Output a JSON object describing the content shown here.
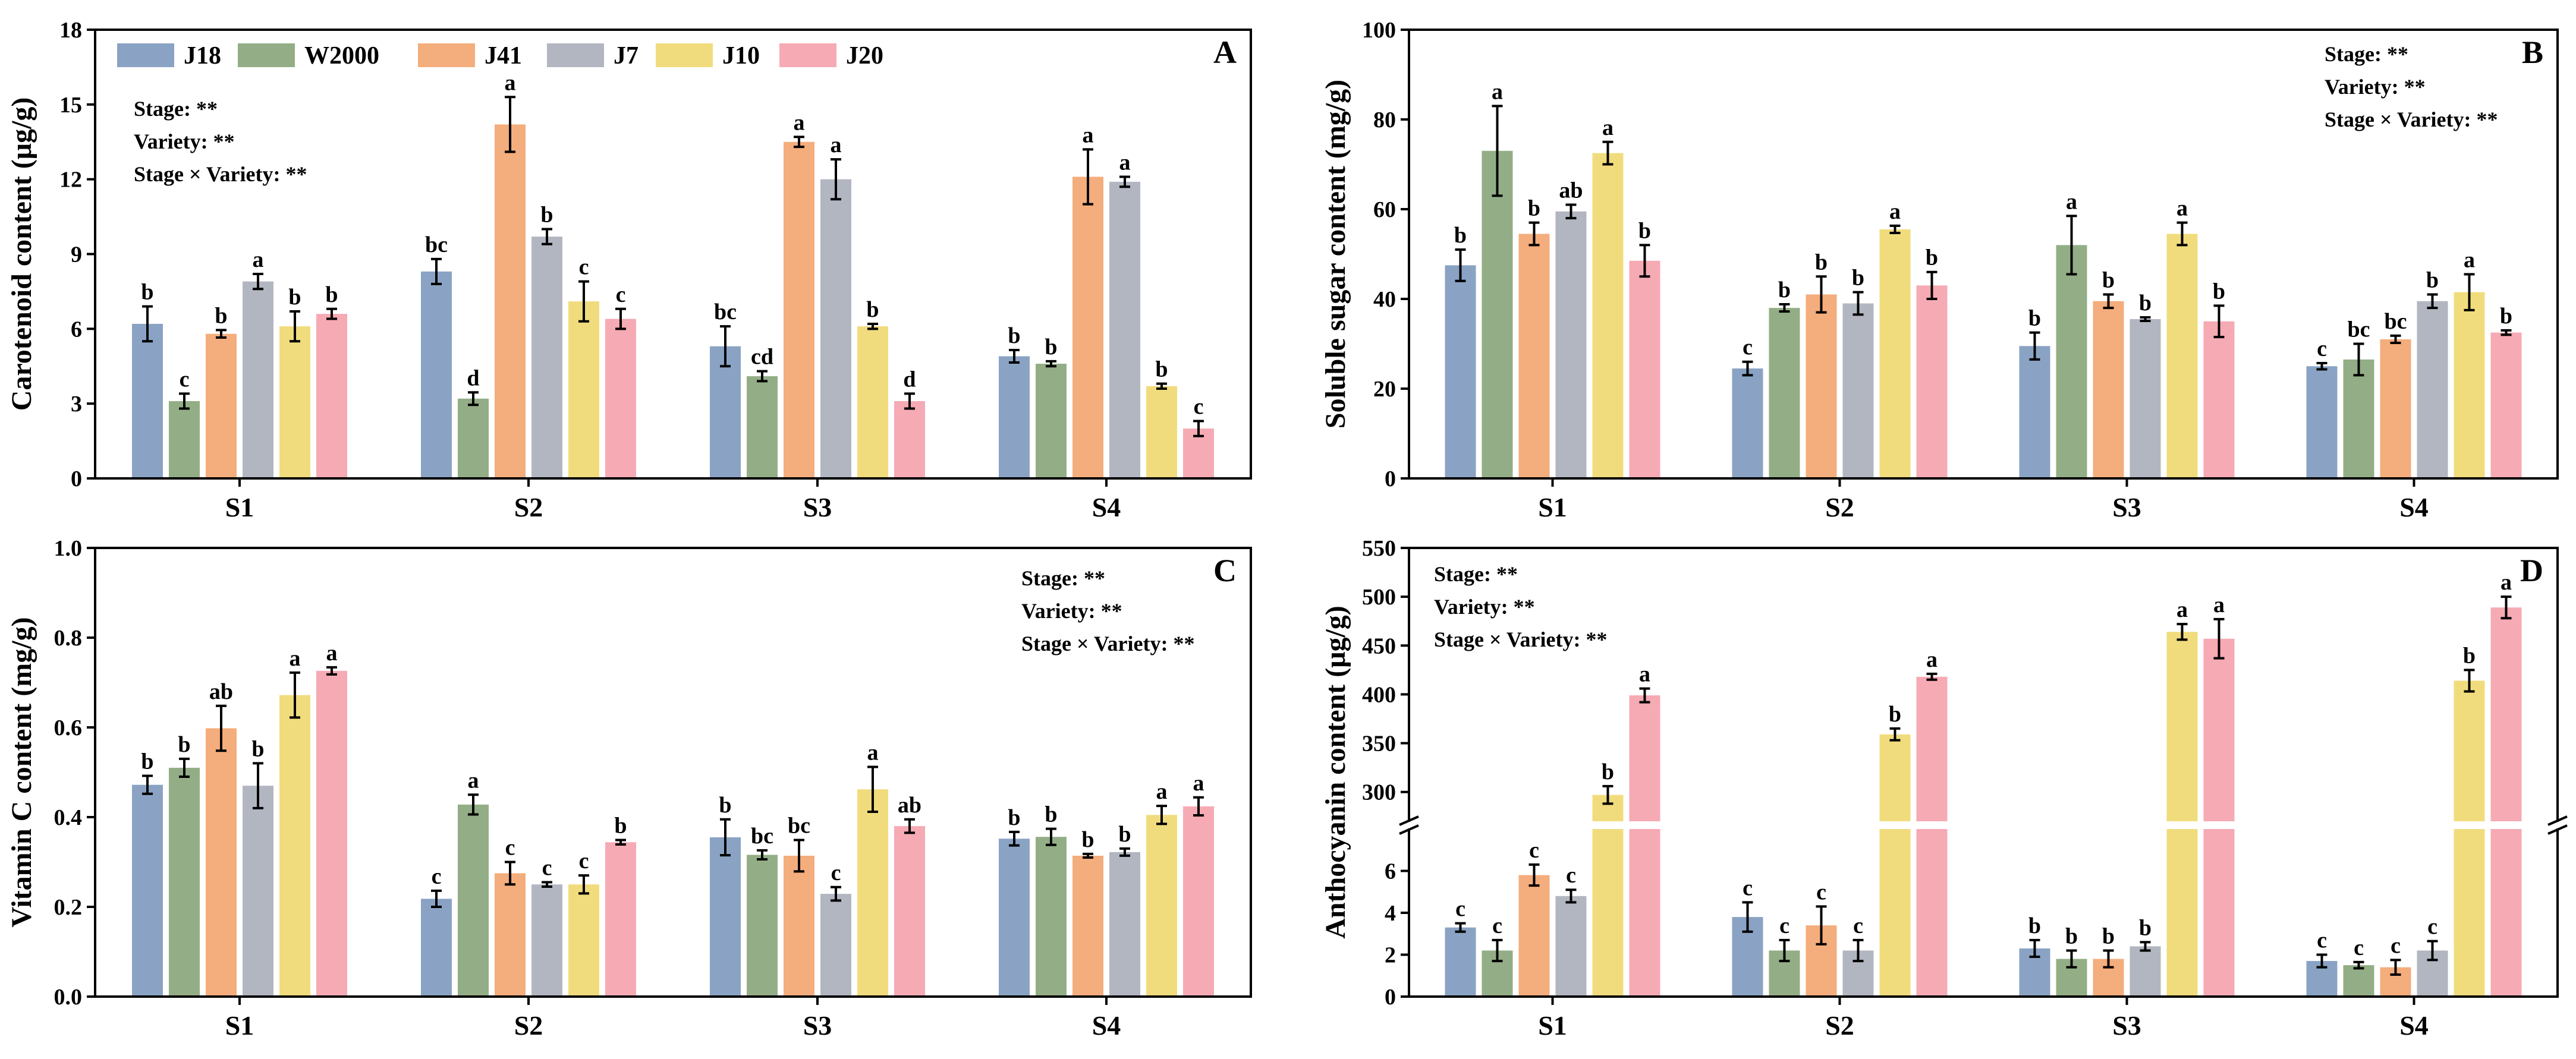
{
  "colors": {
    "J18": "#8aa3c4",
    "W2000": "#93ae86",
    "J41": "#f4ad7c",
    "J7": "#b2b6c1",
    "J10": "#f1dc7d",
    "J20": "#f6aab4"
  },
  "legend": [
    "J18",
    "W2000",
    "J41",
    "J7",
    "J10",
    "J20"
  ],
  "chart_data": [
    {
      "panel": "A",
      "type": "bar",
      "categories": [
        "S1",
        "S2",
        "S3",
        "S4"
      ],
      "ylabel": "Carotenoid content (μg/g)",
      "ylim": [
        0,
        18
      ],
      "yticks": [
        0,
        3,
        6,
        9,
        12,
        15,
        18
      ],
      "ytick_labels": [
        "0",
        "3",
        "6",
        "9",
        "12",
        "15",
        "18"
      ],
      "stats": [
        "Stage: **",
        "Variety: **",
        "Stage × Variety: **"
      ],
      "series": [
        {
          "name": "J18",
          "values": [
            6.2,
            8.3,
            5.3,
            4.9
          ],
          "errors": [
            0.7,
            0.5,
            0.8,
            0.25
          ],
          "letters": [
            "b",
            "bc",
            "bc",
            "b"
          ]
        },
        {
          "name": "W2000",
          "values": [
            3.1,
            3.2,
            4.1,
            4.6
          ],
          "errors": [
            0.3,
            0.25,
            0.2,
            0.1
          ],
          "letters": [
            "c",
            "d",
            "cd",
            "b"
          ]
        },
        {
          "name": "J41",
          "values": [
            5.8,
            14.2,
            13.5,
            12.1
          ],
          "errors": [
            0.15,
            1.1,
            0.2,
            1.1
          ],
          "letters": [
            "b",
            "a",
            "a",
            "a"
          ]
        },
        {
          "name": "J7",
          "values": [
            7.9,
            9.7,
            12.0,
            11.9
          ],
          "errors": [
            0.3,
            0.3,
            0.8,
            0.2
          ],
          "letters": [
            "a",
            "b",
            "a",
            "a"
          ]
        },
        {
          "name": "J10",
          "values": [
            6.1,
            7.1,
            6.1,
            3.7
          ],
          "errors": [
            0.6,
            0.8,
            0.1,
            0.1
          ],
          "letters": [
            "b",
            "c",
            "b",
            "b"
          ]
        },
        {
          "name": "J20",
          "values": [
            6.6,
            6.4,
            3.1,
            2.0
          ],
          "errors": [
            0.2,
            0.4,
            0.3,
            0.3
          ],
          "letters": [
            "b",
            "c",
            "d",
            "c"
          ]
        }
      ]
    },
    {
      "panel": "B",
      "type": "bar",
      "categories": [
        "S1",
        "S2",
        "S3",
        "S4"
      ],
      "ylabel": "Soluble sugar content (mg/g)",
      "ylim": [
        0,
        100
      ],
      "yticks": [
        0,
        20,
        40,
        60,
        80,
        100
      ],
      "ytick_labels": [
        "0",
        "20",
        "40",
        "60",
        "80",
        "100"
      ],
      "stats": [
        "Stage: **",
        "Variety: **",
        "Stage × Variety: **"
      ],
      "series": [
        {
          "name": "J18",
          "values": [
            47.5,
            24.5,
            29.5,
            25.0
          ],
          "errors": [
            3.5,
            1.5,
            3.0,
            0.7
          ],
          "letters": [
            "b",
            "c",
            "b",
            "c"
          ]
        },
        {
          "name": "W2000",
          "values": [
            73.0,
            38.0,
            52.0,
            26.5
          ],
          "errors": [
            10.0,
            0.8,
            6.5,
            3.5
          ],
          "letters": [
            "a",
            "b",
            "a",
            "bc"
          ]
        },
        {
          "name": "J41",
          "values": [
            54.5,
            41.0,
            39.5,
            31.0
          ],
          "errors": [
            2.5,
            4.0,
            1.5,
            0.8
          ],
          "letters": [
            "b",
            "b",
            "b",
            "bc"
          ]
        },
        {
          "name": "J7",
          "values": [
            59.5,
            39.0,
            35.5,
            39.5
          ],
          "errors": [
            1.5,
            2.5,
            0.4,
            1.5
          ],
          "letters": [
            "ab",
            "b",
            "b",
            "b"
          ]
        },
        {
          "name": "J10",
          "values": [
            72.5,
            55.5,
            54.5,
            41.5
          ],
          "errors": [
            2.5,
            0.8,
            2.5,
            4.0
          ],
          "letters": [
            "a",
            "a",
            "a",
            "a"
          ]
        },
        {
          "name": "J20",
          "values": [
            48.5,
            43.0,
            35.0,
            32.5
          ],
          "errors": [
            3.5,
            3.0,
            3.5,
            0.5
          ],
          "letters": [
            "b",
            "b",
            "b",
            "b"
          ]
        }
      ]
    },
    {
      "panel": "C",
      "type": "bar",
      "categories": [
        "S1",
        "S2",
        "S3",
        "S4"
      ],
      "ylabel": "Vitamin C content (mg/g)",
      "ylim": [
        0,
        1.0
      ],
      "yticks": [
        0,
        0.2,
        0.4,
        0.6,
        0.8,
        1.0
      ],
      "ytick_labels": [
        "0.0",
        "0.2",
        "0.4",
        "0.6",
        "0.8",
        "1.0"
      ],
      "stats": [
        "Stage: **",
        "Variety: **",
        "Stage × Variety: **"
      ],
      "series": [
        {
          "name": "J18",
          "values": [
            0.472,
            0.218,
            0.355,
            0.352
          ],
          "errors": [
            0.02,
            0.018,
            0.04,
            0.015
          ],
          "letters": [
            "b",
            "c",
            "b",
            "b"
          ]
        },
        {
          "name": "W2000",
          "values": [
            0.51,
            0.428,
            0.316,
            0.356
          ],
          "errors": [
            0.02,
            0.022,
            0.01,
            0.018
          ],
          "letters": [
            "b",
            "a",
            "bc",
            "b"
          ]
        },
        {
          "name": "J41",
          "values": [
            0.598,
            0.275,
            0.314,
            0.314
          ],
          "errors": [
            0.05,
            0.025,
            0.035,
            0.004
          ],
          "letters": [
            "ab",
            "c",
            "bc",
            "b"
          ]
        },
        {
          "name": "J7",
          "values": [
            0.47,
            0.25,
            0.229,
            0.322
          ],
          "errors": [
            0.05,
            0.005,
            0.015,
            0.008
          ],
          "letters": [
            "b",
            "c",
            "c",
            "b"
          ]
        },
        {
          "name": "J10",
          "values": [
            0.672,
            0.25,
            0.462,
            0.405
          ],
          "errors": [
            0.05,
            0.02,
            0.05,
            0.02
          ],
          "letters": [
            "a",
            "c",
            "a",
            "a"
          ]
        },
        {
          "name": "J20",
          "values": [
            0.726,
            0.344,
            0.38,
            0.424
          ],
          "errors": [
            0.008,
            0.005,
            0.015,
            0.02
          ],
          "letters": [
            "a",
            "b",
            "ab",
            "a"
          ]
        }
      ]
    },
    {
      "panel": "D",
      "type": "bar",
      "categories": [
        "S1",
        "S2",
        "S3",
        "S4"
      ],
      "ylabel": "Anthocyanin content (μg/g)",
      "broken_axis": true,
      "lower_range": [
        0,
        8
      ],
      "upper_range": [
        270,
        550
      ],
      "yticks_lower": [
        0,
        2,
        4,
        6
      ],
      "ytick_labels_lower": [
        "0",
        "2",
        "4",
        "6"
      ],
      "yticks_upper": [
        300,
        350,
        400,
        450,
        500,
        550
      ],
      "ytick_labels_upper": [
        "300",
        "350",
        "400",
        "450",
        "500",
        "550"
      ],
      "stats": [
        "Stage: **",
        "Variety: **",
        "Stage × Variety: **"
      ],
      "series": [
        {
          "name": "J18",
          "values": [
            3.3,
            3.8,
            2.3,
            1.7
          ],
          "errors": [
            0.2,
            0.7,
            0.4,
            0.3
          ],
          "letters": [
            "c",
            "c",
            "b",
            "c"
          ]
        },
        {
          "name": "W2000",
          "values": [
            2.2,
            2.2,
            1.8,
            1.5
          ],
          "errors": [
            0.5,
            0.5,
            0.4,
            0.15
          ],
          "letters": [
            "c",
            "c",
            "b",
            "c"
          ]
        },
        {
          "name": "J41",
          "values": [
            5.8,
            3.4,
            1.8,
            1.4
          ],
          "errors": [
            0.5,
            0.9,
            0.4,
            0.35
          ],
          "letters": [
            "c",
            "c",
            "b",
            "c"
          ]
        },
        {
          "name": "J7",
          "values": [
            4.8,
            2.2,
            2.4,
            2.2
          ],
          "errors": [
            0.3,
            0.5,
            0.2,
            0.45
          ],
          "letters": [
            "c",
            "c",
            "b",
            "c"
          ]
        },
        {
          "name": "J10",
          "values": [
            297,
            359,
            464,
            414
          ],
          "errors": [
            9,
            6,
            8,
            11
          ],
          "letters": [
            "b",
            "b",
            "a",
            "b"
          ]
        },
        {
          "name": "J20",
          "values": [
            399,
            418,
            457,
            489
          ],
          "errors": [
            7,
            3,
            20,
            11
          ],
          "letters": [
            "a",
            "a",
            "a",
            "a"
          ]
        }
      ]
    }
  ]
}
